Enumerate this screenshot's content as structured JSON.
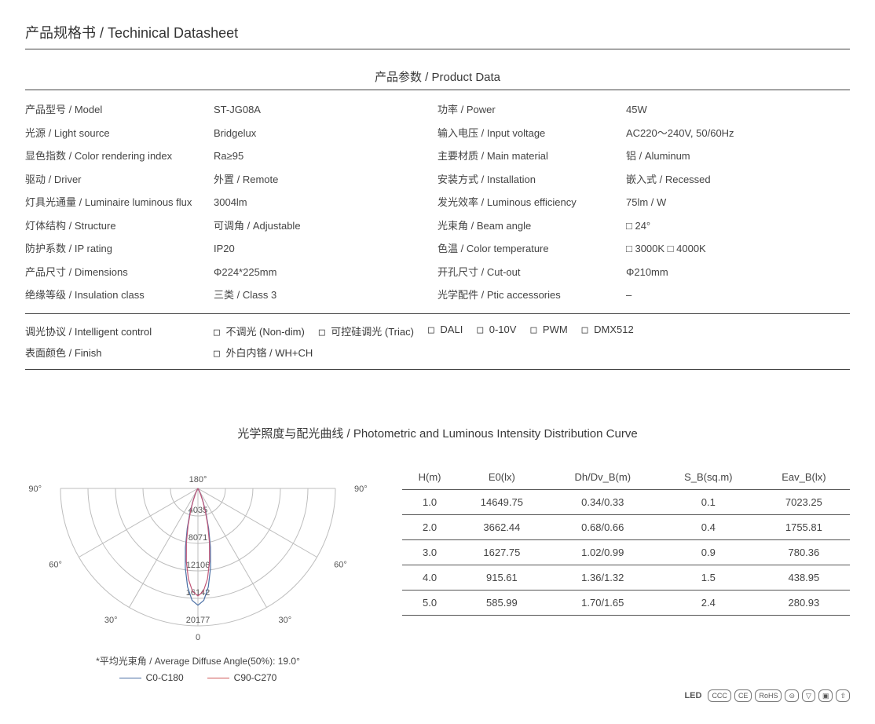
{
  "title": "产品规格书 / Techinical Datasheet",
  "section_product_data": "产品参数 / Product Data",
  "specs_left": [
    {
      "label": "产品型号 / Model",
      "value": "ST-JG08A"
    },
    {
      "label": "光源 / Light source",
      "value": "Bridgelux"
    },
    {
      "label": "显色指数 / Color rendering index",
      "value": "Ra≥95"
    },
    {
      "label": "驱动 / Driver",
      "value": "外置 / Remote"
    },
    {
      "label": "灯具光通量 / Luminaire luminous flux",
      "value": "3004lm"
    },
    {
      "label": "灯体结构 / Structure",
      "value": "可调角 / Adjustable"
    },
    {
      "label": "防护系数 / IP  rating",
      "value": "IP20"
    },
    {
      "label": "产品尺寸  / Dimensions",
      "value": "Φ224*225mm"
    },
    {
      "label": "绝缘等级  / Insulation class",
      "value": "三类 / Class 3"
    }
  ],
  "specs_right": [
    {
      "label": "功率 / Power",
      "value": "45W"
    },
    {
      "label": "输入电压 / Input voltage",
      "value": "AC220～240V, 50/60Hz"
    },
    {
      "label": "主要材质 / Main material",
      "value": "铝 / Aluminum"
    },
    {
      "label": "安装方式 / Installation",
      "value": "嵌入式 / Recessed"
    },
    {
      "label": "发光效率 / Luminous efficiency",
      "value": "75lm / W"
    },
    {
      "label": "光束角 / Beam angle",
      "value": "□  24°"
    },
    {
      "label": "色温 / Color temperature",
      "value": "□ 3000K  □ 4000K"
    },
    {
      "label": "开孔尺寸 / Cut-out",
      "value": "Φ210mm"
    },
    {
      "label": "光学配件 / Ptic accessories",
      "value": "–"
    }
  ],
  "control": {
    "label": "调光协议  / Intelligent control",
    "options": [
      "不调光 (Non-dim)",
      "可控硅调光 (Triac)",
      "DALI",
      "0-10V",
      "PWM",
      "DMX512"
    ]
  },
  "finish": {
    "label": "表面颜色  / Finish",
    "options": [
      "外白内铬 / WH+CH"
    ]
  },
  "curve_title": "光学照度与配光曲线 / Photometric and Luminous Intensity Distribution Curve",
  "polar": {
    "angle_labels_left": [
      "90°",
      "60°",
      "30°"
    ],
    "angle_labels_right": [
      "90°",
      "60°",
      "30°"
    ],
    "top_label": "180°",
    "bottom_label": "0",
    "radial_labels": [
      "4035",
      "8071",
      "12106",
      "16142",
      "20177"
    ],
    "caption": "*平均光束角 / Average Diffuse Angle(50%): 19.0°",
    "legend": [
      {
        "name": "C0-C180",
        "color": "#4a6fa5"
      },
      {
        "name": "C90-C270",
        "color": "#d05858"
      }
    ],
    "ring_color": "#bdbdbd",
    "lobe_colors": {
      "c0": "#4a6fa5",
      "c90": "#c05577"
    }
  },
  "photo_table": {
    "columns": [
      "H(m)",
      "E0(lx)",
      "Dh/Dv_B(m)",
      "S_B(sq.m)",
      "Eav_B(lx)"
    ],
    "rows": [
      [
        "1.0",
        "14649.75",
        "0.34/0.33",
        "0.1",
        "7023.25"
      ],
      [
        "2.0",
        "3662.44",
        "0.68/0.66",
        "0.4",
        "1755.81"
      ],
      [
        "3.0",
        "1627.75",
        "1.02/0.99",
        "0.9",
        "780.36"
      ],
      [
        "4.0",
        "915.61",
        "1.36/1.32",
        "1.5",
        "438.95"
      ],
      [
        "5.0",
        "585.99",
        "1.70/1.65",
        "2.4",
        "280.93"
      ]
    ]
  },
  "certs": [
    "LED",
    "CCC",
    "CE",
    "RoHS",
    "⊝",
    "▽",
    "▣",
    "⇧"
  ]
}
